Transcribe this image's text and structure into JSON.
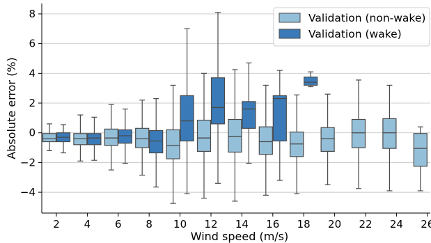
{
  "chart_data": {
    "type": "box",
    "title": "",
    "xlabel": "Wind speed (m/s)",
    "ylabel": "Absolute error (%)",
    "ylim": [
      -5.4,
      8.7
    ],
    "yticks": [
      -4,
      -2,
      0,
      2,
      4,
      6,
      8
    ],
    "grid": "horizontal",
    "legend_position": "top-right",
    "categories": [
      2,
      4,
      6,
      8,
      10,
      12,
      14,
      16,
      18,
      20,
      22,
      24,
      26
    ],
    "series": [
      {
        "name": "Validation (non-wake)",
        "color": "#94bfd9",
        "boxes": [
          {
            "x": 2,
            "whisker_low": -1.2,
            "q1": -0.6,
            "median": -0.4,
            "q3": -0.05,
            "whisker_high": 0.6
          },
          {
            "x": 4,
            "whisker_low": -1.9,
            "q1": -0.8,
            "median": -0.4,
            "q3": -0.05,
            "whisker_high": 1.2
          },
          {
            "x": 6,
            "whisker_low": -2.5,
            "q1": -0.85,
            "median": -0.35,
            "q3": 0.25,
            "whisker_high": 1.9
          },
          {
            "x": 8,
            "whisker_low": -2.85,
            "q1": -1.0,
            "median": -0.4,
            "q3": 0.3,
            "whisker_high": 2.2
          },
          {
            "x": 10,
            "whisker_low": -4.75,
            "q1": -1.75,
            "median": -0.85,
            "q3": 0.2,
            "whisker_high": 3.2
          },
          {
            "x": 12,
            "whisker_low": -4.4,
            "q1": -1.25,
            "median": -0.35,
            "q3": 0.85,
            "whisker_high": 4.0
          },
          {
            "x": 14,
            "whisker_low": -4.6,
            "q1": -1.3,
            "median": -0.25,
            "q3": 0.9,
            "whisker_high": 4.25
          },
          {
            "x": 16,
            "whisker_low": -4.2,
            "q1": -1.45,
            "median": -0.6,
            "q3": 0.4,
            "whisker_high": 3.2
          },
          {
            "x": 18,
            "whisker_low": -4.1,
            "q1": -1.6,
            "median": -0.75,
            "q3": 0.05,
            "whisker_high": 2.55
          },
          {
            "x": 20,
            "whisker_low": -3.5,
            "q1": -1.25,
            "median": -0.4,
            "q3": 0.35,
            "whisker_high": 2.6
          },
          {
            "x": 22,
            "whisker_low": -3.75,
            "q1": -1.0,
            "median": 0.0,
            "q3": 0.9,
            "whisker_high": 3.55
          },
          {
            "x": 24,
            "whisker_low": -3.9,
            "q1": -1.05,
            "median": 0.0,
            "q3": 0.95,
            "whisker_high": 3.2
          },
          {
            "x": 26,
            "whisker_low": -3.9,
            "q1": -2.25,
            "median": -1.05,
            "q3": -0.05,
            "whisker_high": 0.4
          }
        ]
      },
      {
        "name": "Validation (wake)",
        "color": "#3a7ab8",
        "boxes": [
          {
            "x": 2,
            "whisker_low": -1.35,
            "q1": -0.6,
            "median": -0.3,
            "q3": 0.0,
            "whisker_high": 0.55
          },
          {
            "x": 4,
            "whisker_low": -1.85,
            "q1": -0.8,
            "median": -0.35,
            "q3": -0.05,
            "whisker_high": 1.05
          },
          {
            "x": 6,
            "whisker_low": -2.05,
            "q1": -0.7,
            "median": -0.2,
            "q3": 0.2,
            "whisker_high": 1.6
          },
          {
            "x": 8,
            "whisker_low": -3.65,
            "q1": -1.35,
            "median": -0.55,
            "q3": 0.15,
            "whisker_high": 2.3
          },
          {
            "x": 10,
            "whisker_low": -4.1,
            "q1": -0.55,
            "median": 0.8,
            "q3": 2.5,
            "whisker_high": 7.0
          },
          {
            "x": 12,
            "whisker_low": -3.4,
            "q1": 0.6,
            "median": 1.7,
            "q3": 3.7,
            "whisker_high": 8.1
          },
          {
            "x": 14,
            "whisker_low": -2.05,
            "q1": 0.3,
            "median": 1.6,
            "q3": 2.1,
            "whisker_high": 4.7
          },
          {
            "x": 16,
            "whisker_low": -3.2,
            "q1": -0.55,
            "median": 2.3,
            "q3": 2.5,
            "whisker_high": 4.2
          },
          {
            "x": 18,
            "whisker_low": 3.1,
            "q1": 3.2,
            "median": 3.4,
            "q3": 3.75,
            "whisker_high": 4.1
          }
        ]
      }
    ]
  }
}
